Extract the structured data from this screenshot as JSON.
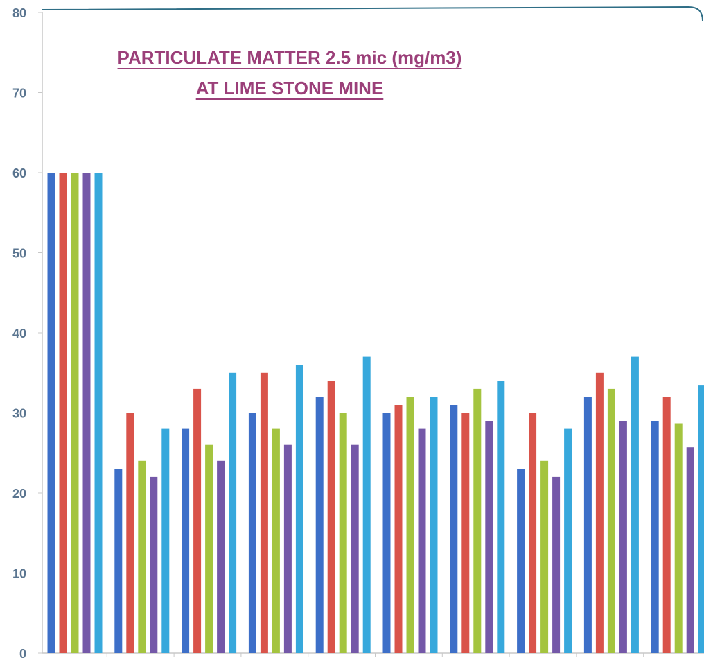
{
  "chart_data": {
    "type": "bar",
    "title_lines": [
      "PARTICULATE MATTER 2.5 mic (mg/m3)",
      "AT LIME STONE MINE"
    ],
    "xlabel": "",
    "ylabel": "",
    "ylim": [
      0,
      80
    ],
    "yticks": [
      "0",
      "10",
      "20",
      "30",
      "40",
      "50",
      "60",
      "70",
      "80"
    ],
    "grid": false,
    "legend": "none",
    "colors": [
      "#3d6fc8",
      "#d9534a",
      "#a4c43f",
      "#7458a8",
      "#37a8dc"
    ],
    "categories": [
      "",
      "",
      "",
      "",
      "",
      "",
      "",
      "",
      "",
      ""
    ],
    "series": [
      {
        "values": [
          60,
          23,
          28,
          30,
          32,
          30,
          31,
          23,
          32,
          29
        ]
      },
      {
        "values": [
          60,
          30,
          33,
          35,
          34,
          31,
          30,
          30,
          35,
          32
        ]
      },
      {
        "values": [
          60,
          24,
          26,
          28,
          30,
          32,
          33,
          24,
          33,
          28.7
        ]
      },
      {
        "values": [
          60,
          22,
          24,
          26,
          26,
          28,
          29,
          22,
          29,
          25.7
        ]
      },
      {
        "values": [
          60,
          28,
          35,
          36,
          37,
          32,
          34,
          28,
          37,
          33.5
        ]
      }
    ]
  }
}
